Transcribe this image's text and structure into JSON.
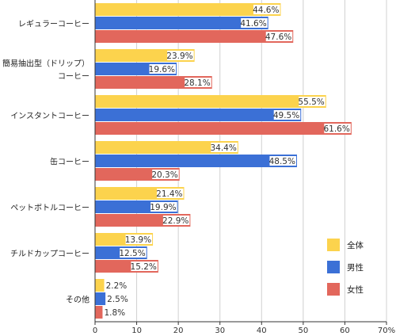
{
  "chart_data": {
    "type": "bar",
    "orientation": "horizontal",
    "categories": [
      [
        "レギュラーコーヒー"
      ],
      [
        "簡易抽出型（ドリップ）",
        "コーヒー"
      ],
      [
        "インスタントコーヒー"
      ],
      [
        "缶コーヒー"
      ],
      [
        "ペットボトルコーヒー"
      ],
      [
        "チルドカップコーヒー"
      ],
      [
        "その他"
      ]
    ],
    "series": [
      {
        "name": "全体",
        "color": "#fcd34d",
        "values": [
          44.6,
          23.9,
          55.5,
          34.4,
          21.4,
          13.9,
          2.2
        ]
      },
      {
        "name": "男性",
        "color": "#3b70d6",
        "values": [
          41.6,
          19.6,
          49.5,
          48.5,
          19.9,
          12.5,
          2.5
        ]
      },
      {
        "name": "女性",
        "color": "#e2675c",
        "values": [
          47.6,
          28.1,
          61.6,
          20.3,
          22.9,
          15.2,
          1.8
        ]
      }
    ],
    "value_format": "{v}%",
    "xlim": [
      0,
      70
    ],
    "x_ticks": [
      "0",
      "10",
      "20",
      "30",
      "40",
      "50",
      "60",
      "70%"
    ],
    "grid": true,
    "legend_position": "bottom-right",
    "title": "",
    "xlabel": "",
    "ylabel": ""
  }
}
